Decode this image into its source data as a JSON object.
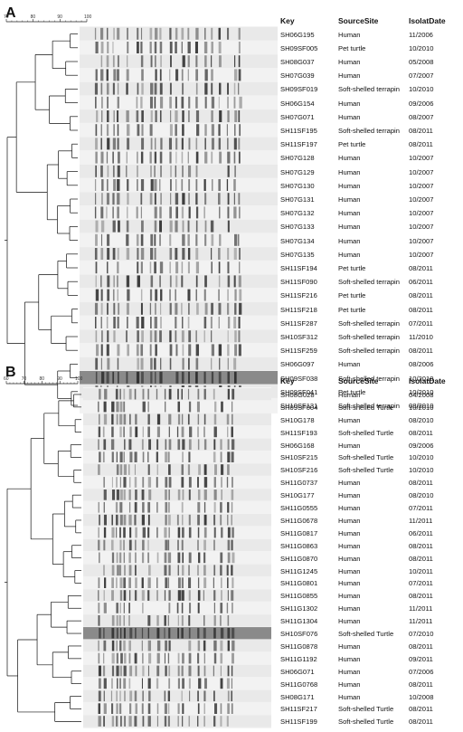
{
  "panels": [
    {
      "label": "A",
      "scale_ticks": [
        "70",
        "80",
        "90",
        "100"
      ],
      "headers": {
        "key": "Key",
        "source": "SourceSite",
        "date": "IsolatDate"
      },
      "rows": [
        {
          "key": "SH06G195",
          "source": "Human",
          "date": "11/2006"
        },
        {
          "key": "SH09SF005",
          "source": "Pet turtle",
          "date": "10/2010"
        },
        {
          "key": "SH08G037",
          "source": "Human",
          "date": "05/2008"
        },
        {
          "key": "SH07G039",
          "source": "Human",
          "date": "07/2007"
        },
        {
          "key": "SH09SF019",
          "source": "Soft-shelled terrapin",
          "date": "10/2010"
        },
        {
          "key": "SH06G154",
          "source": "Human",
          "date": "09/2006"
        },
        {
          "key": "SH07G071",
          "source": "Human",
          "date": "08/2007"
        },
        {
          "key": "SH11SF195",
          "source": "Soft-shelled terrapin",
          "date": "08/2011"
        },
        {
          "key": "SH11SF197",
          "source": "Pet turtle",
          "date": "08/2011"
        },
        {
          "key": "SH07G128",
          "source": "Human",
          "date": "10/2007"
        },
        {
          "key": "SH07G129",
          "source": "Human",
          "date": "10/2007"
        },
        {
          "key": "SH07G130",
          "source": "Human",
          "date": "10/2007"
        },
        {
          "key": "SH07G131",
          "source": "Human",
          "date": "10/2007"
        },
        {
          "key": "SH07G132",
          "source": "Human",
          "date": "10/2007"
        },
        {
          "key": "SH07G133",
          "source": "Human",
          "date": "10/2007"
        },
        {
          "key": "SH07G134",
          "source": "Human",
          "date": "10/2007"
        },
        {
          "key": "SH07G135",
          "source": "Human",
          "date": "10/2007"
        },
        {
          "key": "SH11SF194",
          "source": "Pet turtle",
          "date": "08/2011"
        },
        {
          "key": "SH11SF090",
          "source": "Soft-shelled terrapin",
          "date": "06/2011"
        },
        {
          "key": "SH11SF216",
          "source": "Pet turtle",
          "date": "08/2011"
        },
        {
          "key": "SH11SF218",
          "source": "Pet turtle",
          "date": "08/2011"
        },
        {
          "key": "SH11SF287",
          "source": "Soft-shelled terrapin",
          "date": "07/2011"
        },
        {
          "key": "SH10SF312",
          "source": "Soft-shelled terrapin",
          "date": "11/2010"
        },
        {
          "key": "SH11SF259",
          "source": "Soft-shelled terrapin",
          "date": "08/2011"
        },
        {
          "key": "SH06G097",
          "source": "Human",
          "date": "08/2006"
        },
        {
          "key": "SH09SF038",
          "source": "Soft-shelled terrapin",
          "date": "10/2010"
        },
        {
          "key": "SH09SF041",
          "source": "Pet turtle",
          "date": "10/2010"
        },
        {
          "key": "SH10SF131",
          "source": "Soft-shelled terrapin",
          "date": "08/2010"
        }
      ]
    },
    {
      "label": "B",
      "scale_ticks": [
        "60",
        "70",
        "80",
        "90",
        "100"
      ],
      "headers": {
        "key": "Key",
        "source": "SourceSite",
        "date": "IsolatDate"
      },
      "rows": [
        {
          "key": "SH08G028",
          "source": "Human",
          "date": "04/2008"
        },
        {
          "key": "SH09SF004",
          "source": "Soft-shelled Turtle",
          "date": "10/2010"
        },
        {
          "key": "SH10G178",
          "source": "Human",
          "date": "08/2010"
        },
        {
          "key": "SH11SF193",
          "source": "Soft-shelled Turtle",
          "date": "08/2011"
        },
        {
          "key": "SH06G168",
          "source": "Human",
          "date": "09/2006"
        },
        {
          "key": "SH10SF215",
          "source": "Soft-shelled Turtle",
          "date": "10/2010"
        },
        {
          "key": "SH10SF216",
          "source": "Soft-shelled Turtle",
          "date": "10/2010"
        },
        {
          "key": "SH11G0737",
          "source": "Human",
          "date": "08/2011"
        },
        {
          "key": "SH10G177",
          "source": "Human",
          "date": "08/2010"
        },
        {
          "key": "SH11G0555",
          "source": "Human",
          "date": "07/2011"
        },
        {
          "key": "SH11G0678",
          "source": "Human",
          "date": "11/2011"
        },
        {
          "key": "SH11G0817",
          "source": "Human",
          "date": "06/2011"
        },
        {
          "key": "SH11G0863",
          "source": "Human",
          "date": "08/2011"
        },
        {
          "key": "SH11G0870",
          "source": "Human",
          "date": "08/2011"
        },
        {
          "key": "SH11G1245",
          "source": "Human",
          "date": "10/2011"
        },
        {
          "key": "SH11G0801",
          "source": "Human",
          "date": "07/2011"
        },
        {
          "key": "SH11G0855",
          "source": "Human",
          "date": "08/2011"
        },
        {
          "key": "SH11G1302",
          "source": "Human",
          "date": "11/2011"
        },
        {
          "key": "SH11G1304",
          "source": "Human",
          "date": "11/2011"
        },
        {
          "key": "SH10SF076",
          "source": "Soft-shelled Turtle",
          "date": "07/2010"
        },
        {
          "key": "SH11G0878",
          "source": "Human",
          "date": "08/2011"
        },
        {
          "key": "SH11G1192",
          "source": "Human",
          "date": "09/2011"
        },
        {
          "key": "SH06G071",
          "source": "Human",
          "date": "07/2006"
        },
        {
          "key": "SH11G0768",
          "source": "Human",
          "date": "08/2011"
        },
        {
          "key": "SH08G171",
          "source": "Human",
          "date": "10/2008"
        },
        {
          "key": "SH11SF217",
          "source": "Soft-shelled Turtle",
          "date": "08/2011"
        },
        {
          "key": "SH11SF199",
          "source": "Soft-shelled Turtle",
          "date": "08/2011"
        }
      ]
    }
  ]
}
